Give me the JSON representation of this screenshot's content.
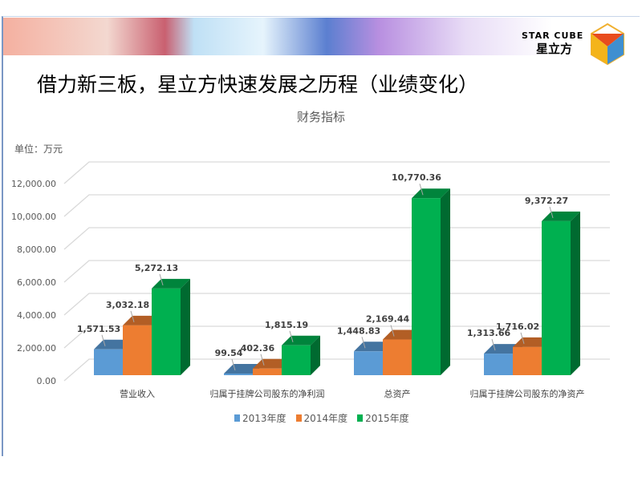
{
  "header": {
    "title": "借力新三板，星立方快速发展之历程（业绩变化）",
    "logo_en": "STAR CUBE",
    "logo_cn": "星立方"
  },
  "chart_data": {
    "type": "bar",
    "title": "财务指标",
    "unit_label": "单位：万元",
    "categories": [
      "营业收入",
      "归属于挂牌公司股东的净利润",
      "总资产",
      "归属于挂牌公司股东的净资产"
    ],
    "series": [
      {
        "name": "2013年度",
        "color": "#5b9bd5",
        "values": [
          1571.53,
          99.54,
          1448.83,
          1313.66
        ],
        "labels": [
          "1,571.53",
          "99.54",
          "1,448.83",
          "1,313.66"
        ]
      },
      {
        "name": "2014年度",
        "color": "#ed7d31",
        "values": [
          3032.18,
          402.36,
          2169.44,
          1716.02
        ],
        "labels": [
          "3,032.18",
          "402.36",
          "2,169.44",
          "1,716.02"
        ]
      },
      {
        "name": "2015年度",
        "color": "#00b050",
        "values": [
          5272.13,
          1815.19,
          10770.36,
          9372.27
        ],
        "labels": [
          "5,272.13",
          "1,815.19",
          "10,770.36",
          "9,372.27"
        ]
      }
    ],
    "yticks": [
      "0.00",
      "2,000.00",
      "4,000.00",
      "6,000.00",
      "8,000.00",
      "10,000.00",
      "12,000.00"
    ],
    "ylim": [
      0,
      12000
    ],
    "legend": "bottom"
  }
}
